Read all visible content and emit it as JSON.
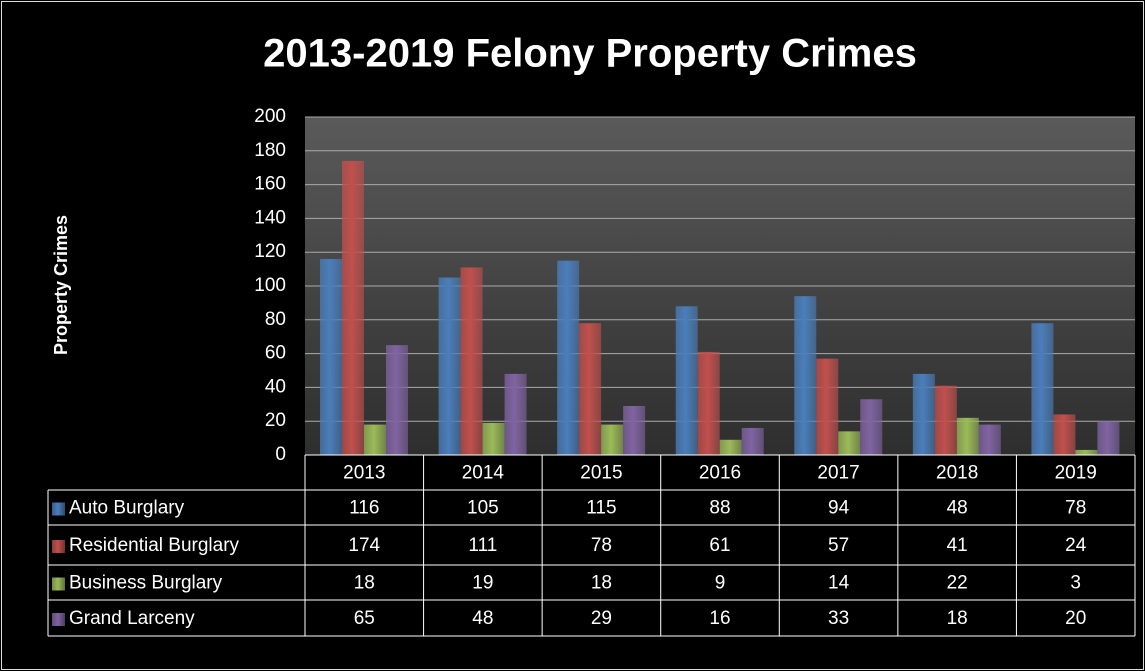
{
  "chart_data": {
    "type": "bar",
    "title": "2013-2019 Felony Property Crimes",
    "y_label": "Property Crimes",
    "categories": [
      "2013",
      "2014",
      "2015",
      "2016",
      "2017",
      "2018",
      "2019"
    ],
    "series": [
      {
        "name": "Auto Burglary",
        "color": "#4a7ebb",
        "values": [
          116,
          105,
          115,
          88,
          94,
          48,
          78
        ]
      },
      {
        "name": "Residential Burglary",
        "color": "#c0504d",
        "values": [
          174,
          111,
          78,
          61,
          57,
          41,
          24
        ]
      },
      {
        "name": "Business Burglary",
        "color": "#9bbb59",
        "values": [
          18,
          19,
          18,
          9,
          14,
          22,
          3
        ]
      },
      {
        "name": "Grand Larceny",
        "color": "#8064a2",
        "values": [
          65,
          48,
          29,
          16,
          33,
          18,
          20
        ]
      }
    ],
    "ylim": [
      0,
      200
    ],
    "yticks": [
      0,
      20,
      40,
      60,
      80,
      100,
      120,
      140,
      160,
      180,
      200
    ],
    "grid": true
  }
}
